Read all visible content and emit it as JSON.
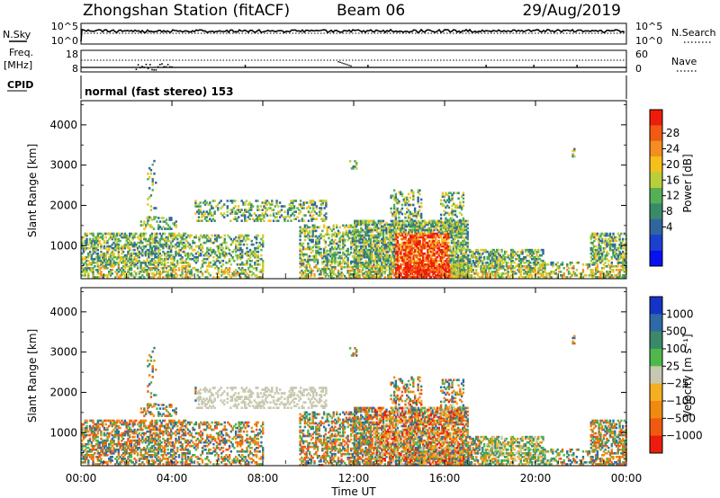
{
  "header": {
    "station": "Zhongshan Station (fitACF)",
    "beam": "Beam 06",
    "date": "29/Aug/2019"
  },
  "strip_labels": {
    "nsky": "N.Sky",
    "nsearch": "N.Search",
    "freq": "Freq.",
    "mhz": "[MHz]",
    "cpid": "CPID",
    "nave": "Nave",
    "cpid_text": "normal (fast stereo) 153",
    "nsky_ticks": [
      "10^5",
      "10^0"
    ],
    "nsearch_ticks": [
      "10^5",
      "10^0"
    ],
    "freq_ticks": [
      "18",
      "8"
    ],
    "nave_ticks": [
      "60",
      "0"
    ]
  },
  "chart_data": [
    {
      "type": "heatmap",
      "parameter": "Power",
      "ylabel": "Slant Range [km]",
      "ylim": [
        180,
        4600
      ],
      "yticks": [
        "1000",
        "2000",
        "3000",
        "4000"
      ],
      "xlim_hours": [
        0,
        24
      ],
      "colorbar_label": "Power [dB]",
      "colorbar_ticks": [
        "28",
        "24",
        "20",
        "16",
        "12",
        "8",
        "4"
      ],
      "colorbar_colors": [
        "#ee1c0c",
        "#f05a12",
        "#f58d22",
        "#f6c01a",
        "#b8cf3a",
        "#55b055",
        "#3a8a6a",
        "#3065a0",
        "#1a40d0",
        "#0a10f0"
      ]
    },
    {
      "type": "heatmap",
      "parameter": "Velocity",
      "ylabel": "Slant Range [km]",
      "ylim": [
        180,
        4600
      ],
      "yticks": [
        "1000",
        "2000",
        "3000",
        "4000"
      ],
      "xlim_hours": [
        0,
        24
      ],
      "colorbar_label": "Velocity [m s⁻¹]",
      "colorbar_ticks": [
        "1000",
        "500",
        "100",
        "25",
        "−25",
        "−100",
        "−500",
        "−1000"
      ],
      "colorbar_colors": [
        "#1434c8",
        "#3068a8",
        "#3a8a6a",
        "#4fb84a",
        "#c8c8b0",
        "#f4b020",
        "#f08a10",
        "#f05a10",
        "#ee1c0c"
      ]
    }
  ],
  "xaxis": {
    "ticks": [
      "00:00",
      "04:00",
      "08:00",
      "12:00",
      "16:00",
      "20:00",
      "00:00"
    ],
    "title": "Time UT"
  }
}
